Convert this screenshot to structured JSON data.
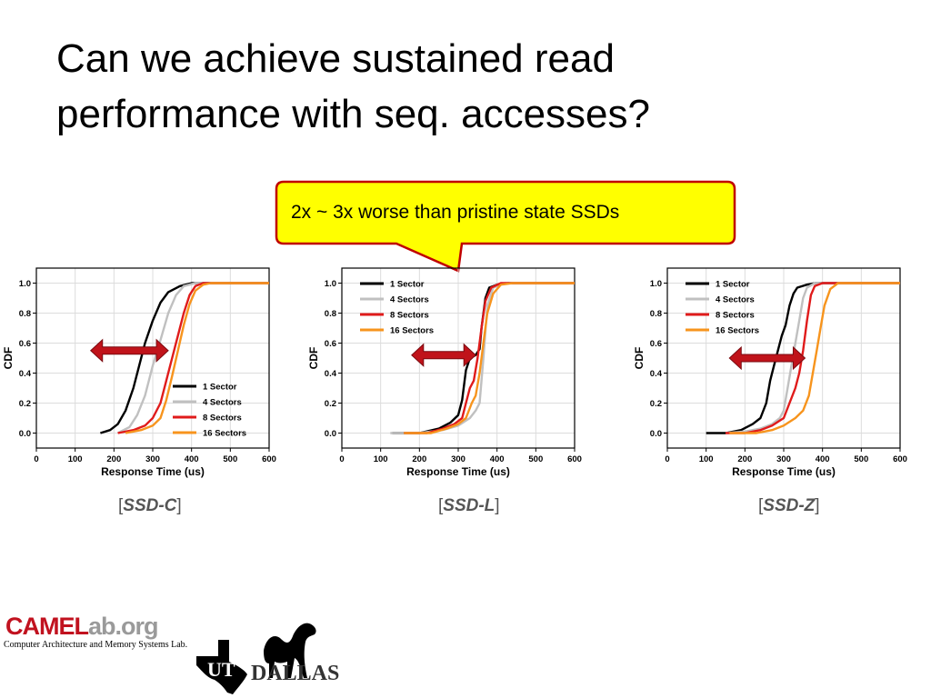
{
  "title": {
    "line1": "Can we achieve sustained read",
    "line2": "performance with seq. accesses?"
  },
  "callout": {
    "text": "2x ~ 3x worse than pristine state SSDs"
  },
  "captions": [
    {
      "open": "[",
      "name": "SSD-C",
      "close": "]"
    },
    {
      "open": "[",
      "name": "SSD-L",
      "close": "]"
    },
    {
      "open": "[",
      "name": "SSD-Z",
      "close": "]"
    }
  ],
  "logo": {
    "camel_a": "CAMEL",
    "camel_b": "ab.org",
    "subtitle": "Computer Architecture and Memory Systems Lab.",
    "ut": "UT",
    "dallas": "DALLAS"
  },
  "colors": {
    "s1": "#000000",
    "s4": "#c0c0c0",
    "s8": "#e01b1b",
    "s16": "#f7941d",
    "arrow": "#c0131a",
    "callout_fill": "#ffff00",
    "callout_border": "#c00000"
  },
  "chart_data": [
    {
      "type": "line",
      "xlabel": "Response Time (us)",
      "ylabel": "CDF",
      "xlim": [
        0,
        600
      ],
      "ylim": [
        -0.1,
        1.1
      ],
      "xticks": [
        "0",
        "100",
        "200",
        "300",
        "400",
        "500",
        "600"
      ],
      "yticks": [
        "0.0",
        "0.2",
        "0.4",
        "0.6",
        "0.8",
        "1.0"
      ],
      "grid": true,
      "legend": "bottom-right",
      "arrow": {
        "x_from": 140,
        "x_to": 340,
        "y": 0.55
      },
      "series": [
        {
          "name": "1 Sector",
          "color_key": "s1",
          "points": [
            [
              165,
              0
            ],
            [
              190,
              0.02
            ],
            [
              210,
              0.06
            ],
            [
              230,
              0.15
            ],
            [
              250,
              0.3
            ],
            [
              265,
              0.45
            ],
            [
              280,
              0.6
            ],
            [
              300,
              0.75
            ],
            [
              320,
              0.87
            ],
            [
              340,
              0.94
            ],
            [
              370,
              0.98
            ],
            [
              400,
              1.0
            ],
            [
              600,
              1.0
            ]
          ]
        },
        {
          "name": "4 Sectors",
          "color_key": "s4",
          "points": [
            [
              210,
              0
            ],
            [
              240,
              0.04
            ],
            [
              260,
              0.12
            ],
            [
              280,
              0.25
            ],
            [
              300,
              0.45
            ],
            [
              320,
              0.62
            ],
            [
              340,
              0.8
            ],
            [
              360,
              0.92
            ],
            [
              380,
              0.98
            ],
            [
              410,
              1.0
            ],
            [
              600,
              1.0
            ]
          ]
        },
        {
          "name": "8 Sectors",
          "color_key": "s8",
          "points": [
            [
              210,
              0
            ],
            [
              250,
              0.02
            ],
            [
              280,
              0.05
            ],
            [
              300,
              0.1
            ],
            [
              320,
              0.2
            ],
            [
              335,
              0.35
            ],
            [
              350,
              0.5
            ],
            [
              365,
              0.65
            ],
            [
              380,
              0.8
            ],
            [
              395,
              0.92
            ],
            [
              410,
              0.98
            ],
            [
              430,
              1.0
            ],
            [
              600,
              1.0
            ]
          ]
        },
        {
          "name": "16 Sectors",
          "color_key": "s16",
          "points": [
            [
              230,
              0
            ],
            [
              270,
              0.02
            ],
            [
              300,
              0.05
            ],
            [
              320,
              0.1
            ],
            [
              335,
              0.22
            ],
            [
              350,
              0.38
            ],
            [
              365,
              0.55
            ],
            [
              380,
              0.72
            ],
            [
              395,
              0.86
            ],
            [
              410,
              0.95
            ],
            [
              430,
              0.99
            ],
            [
              450,
              1.0
            ],
            [
              600,
              1.0
            ]
          ]
        }
      ]
    },
    {
      "type": "line",
      "xlabel": "Response Time (us)",
      "ylabel": "CDF",
      "xlim": [
        0,
        600
      ],
      "ylim": [
        -0.1,
        1.1
      ],
      "xticks": [
        "0",
        "100",
        "200",
        "300",
        "400",
        "500",
        "600"
      ],
      "yticks": [
        "0.0",
        "0.2",
        "0.4",
        "0.6",
        "0.8",
        "1.0"
      ],
      "grid": true,
      "legend": "top-left",
      "arrow": {
        "x_from": 180,
        "x_to": 345,
        "y": 0.52
      },
      "series": [
        {
          "name": "1 Sector",
          "color_key": "s1",
          "points": [
            [
              130,
              0
            ],
            [
              200,
              0
            ],
            [
              250,
              0.03
            ],
            [
              280,
              0.07
            ],
            [
              300,
              0.12
            ],
            [
              310,
              0.22
            ],
            [
              320,
              0.42
            ],
            [
              330,
              0.5
            ],
            [
              345,
              0.52
            ],
            [
              355,
              0.56
            ],
            [
              360,
              0.7
            ],
            [
              370,
              0.9
            ],
            [
              380,
              0.97
            ],
            [
              400,
              0.99
            ],
            [
              430,
              1.0
            ],
            [
              600,
              1.0
            ]
          ]
        },
        {
          "name": "4 Sectors",
          "color_key": "s4",
          "points": [
            [
              125,
              0
            ],
            [
              200,
              0
            ],
            [
              260,
              0.02
            ],
            [
              300,
              0.05
            ],
            [
              330,
              0.1
            ],
            [
              345,
              0.15
            ],
            [
              355,
              0.2
            ],
            [
              365,
              0.5
            ],
            [
              375,
              0.85
            ],
            [
              390,
              0.97
            ],
            [
              420,
              1.0
            ],
            [
              600,
              1.0
            ]
          ]
        },
        {
          "name": "8 Sectors",
          "color_key": "s8",
          "points": [
            [
              160,
              0
            ],
            [
              220,
              0
            ],
            [
              260,
              0.03
            ],
            [
              290,
              0.06
            ],
            [
              310,
              0.1
            ],
            [
              320,
              0.2
            ],
            [
              330,
              0.3
            ],
            [
              340,
              0.35
            ],
            [
              350,
              0.5
            ],
            [
              360,
              0.7
            ],
            [
              370,
              0.88
            ],
            [
              385,
              0.97
            ],
            [
              410,
              1.0
            ],
            [
              600,
              1.0
            ]
          ]
        },
        {
          "name": "16 Sectors",
          "color_key": "s16",
          "points": [
            [
              160,
              0
            ],
            [
              230,
              0
            ],
            [
              270,
              0.03
            ],
            [
              300,
              0.06
            ],
            [
              320,
              0.1
            ],
            [
              335,
              0.2
            ],
            [
              345,
              0.25
            ],
            [
              355,
              0.4
            ],
            [
              365,
              0.6
            ],
            [
              375,
              0.8
            ],
            [
              390,
              0.93
            ],
            [
              410,
              0.99
            ],
            [
              440,
              1.0
            ],
            [
              600,
              1.0
            ]
          ]
        }
      ]
    },
    {
      "type": "line",
      "xlabel": "Response Time (us)",
      "ylabel": "CDF",
      "xlim": [
        0,
        600
      ],
      "ylim": [
        -0.1,
        1.1
      ],
      "xticks": [
        "0",
        "100",
        "200",
        "300",
        "400",
        "500",
        "600"
      ],
      "yticks": [
        "0.0",
        "0.2",
        "0.4",
        "0.6",
        "0.8",
        "1.0"
      ],
      "grid": true,
      "legend": "top-left",
      "arrow": {
        "x_from": 160,
        "x_to": 355,
        "y": 0.5
      },
      "series": [
        {
          "name": "1 Sector",
          "color_key": "s1",
          "points": [
            [
              100,
              0
            ],
            [
              150,
              0
            ],
            [
              190,
              0.02
            ],
            [
              220,
              0.06
            ],
            [
              240,
              0.1
            ],
            [
              255,
              0.2
            ],
            [
              265,
              0.35
            ],
            [
              275,
              0.45
            ],
            [
              285,
              0.55
            ],
            [
              295,
              0.65
            ],
            [
              305,
              0.72
            ],
            [
              315,
              0.85
            ],
            [
              325,
              0.93
            ],
            [
              335,
              0.97
            ],
            [
              360,
              0.99
            ],
            [
              380,
              1.0
            ],
            [
              600,
              1.0
            ]
          ]
        },
        {
          "name": "4 Sectors",
          "color_key": "s4",
          "points": [
            [
              150,
              0
            ],
            [
              200,
              0.01
            ],
            [
              240,
              0.03
            ],
            [
              270,
              0.06
            ],
            [
              290,
              0.1
            ],
            [
              300,
              0.15
            ],
            [
              310,
              0.3
            ],
            [
              320,
              0.45
            ],
            [
              330,
              0.6
            ],
            [
              340,
              0.75
            ],
            [
              350,
              0.9
            ],
            [
              360,
              0.97
            ],
            [
              380,
              1.0
            ],
            [
              600,
              1.0
            ]
          ]
        },
        {
          "name": "8 Sectors",
          "color_key": "s8",
          "points": [
            [
              150,
              0
            ],
            [
              200,
              0
            ],
            [
              240,
              0.02
            ],
            [
              270,
              0.05
            ],
            [
              300,
              0.1
            ],
            [
              315,
              0.2
            ],
            [
              330,
              0.3
            ],
            [
              340,
              0.4
            ],
            [
              350,
              0.55
            ],
            [
              360,
              0.75
            ],
            [
              370,
              0.92
            ],
            [
              380,
              0.98
            ],
            [
              400,
              1.0
            ],
            [
              600,
              1.0
            ]
          ]
        },
        {
          "name": "16 Sectors",
          "color_key": "s16",
          "points": [
            [
              160,
              0
            ],
            [
              230,
              0
            ],
            [
              270,
              0.02
            ],
            [
              300,
              0.05
            ],
            [
              330,
              0.1
            ],
            [
              350,
              0.15
            ],
            [
              365,
              0.25
            ],
            [
              375,
              0.4
            ],
            [
              385,
              0.55
            ],
            [
              395,
              0.7
            ],
            [
              405,
              0.85
            ],
            [
              420,
              0.96
            ],
            [
              440,
              1.0
            ],
            [
              600,
              1.0
            ]
          ]
        }
      ]
    }
  ]
}
